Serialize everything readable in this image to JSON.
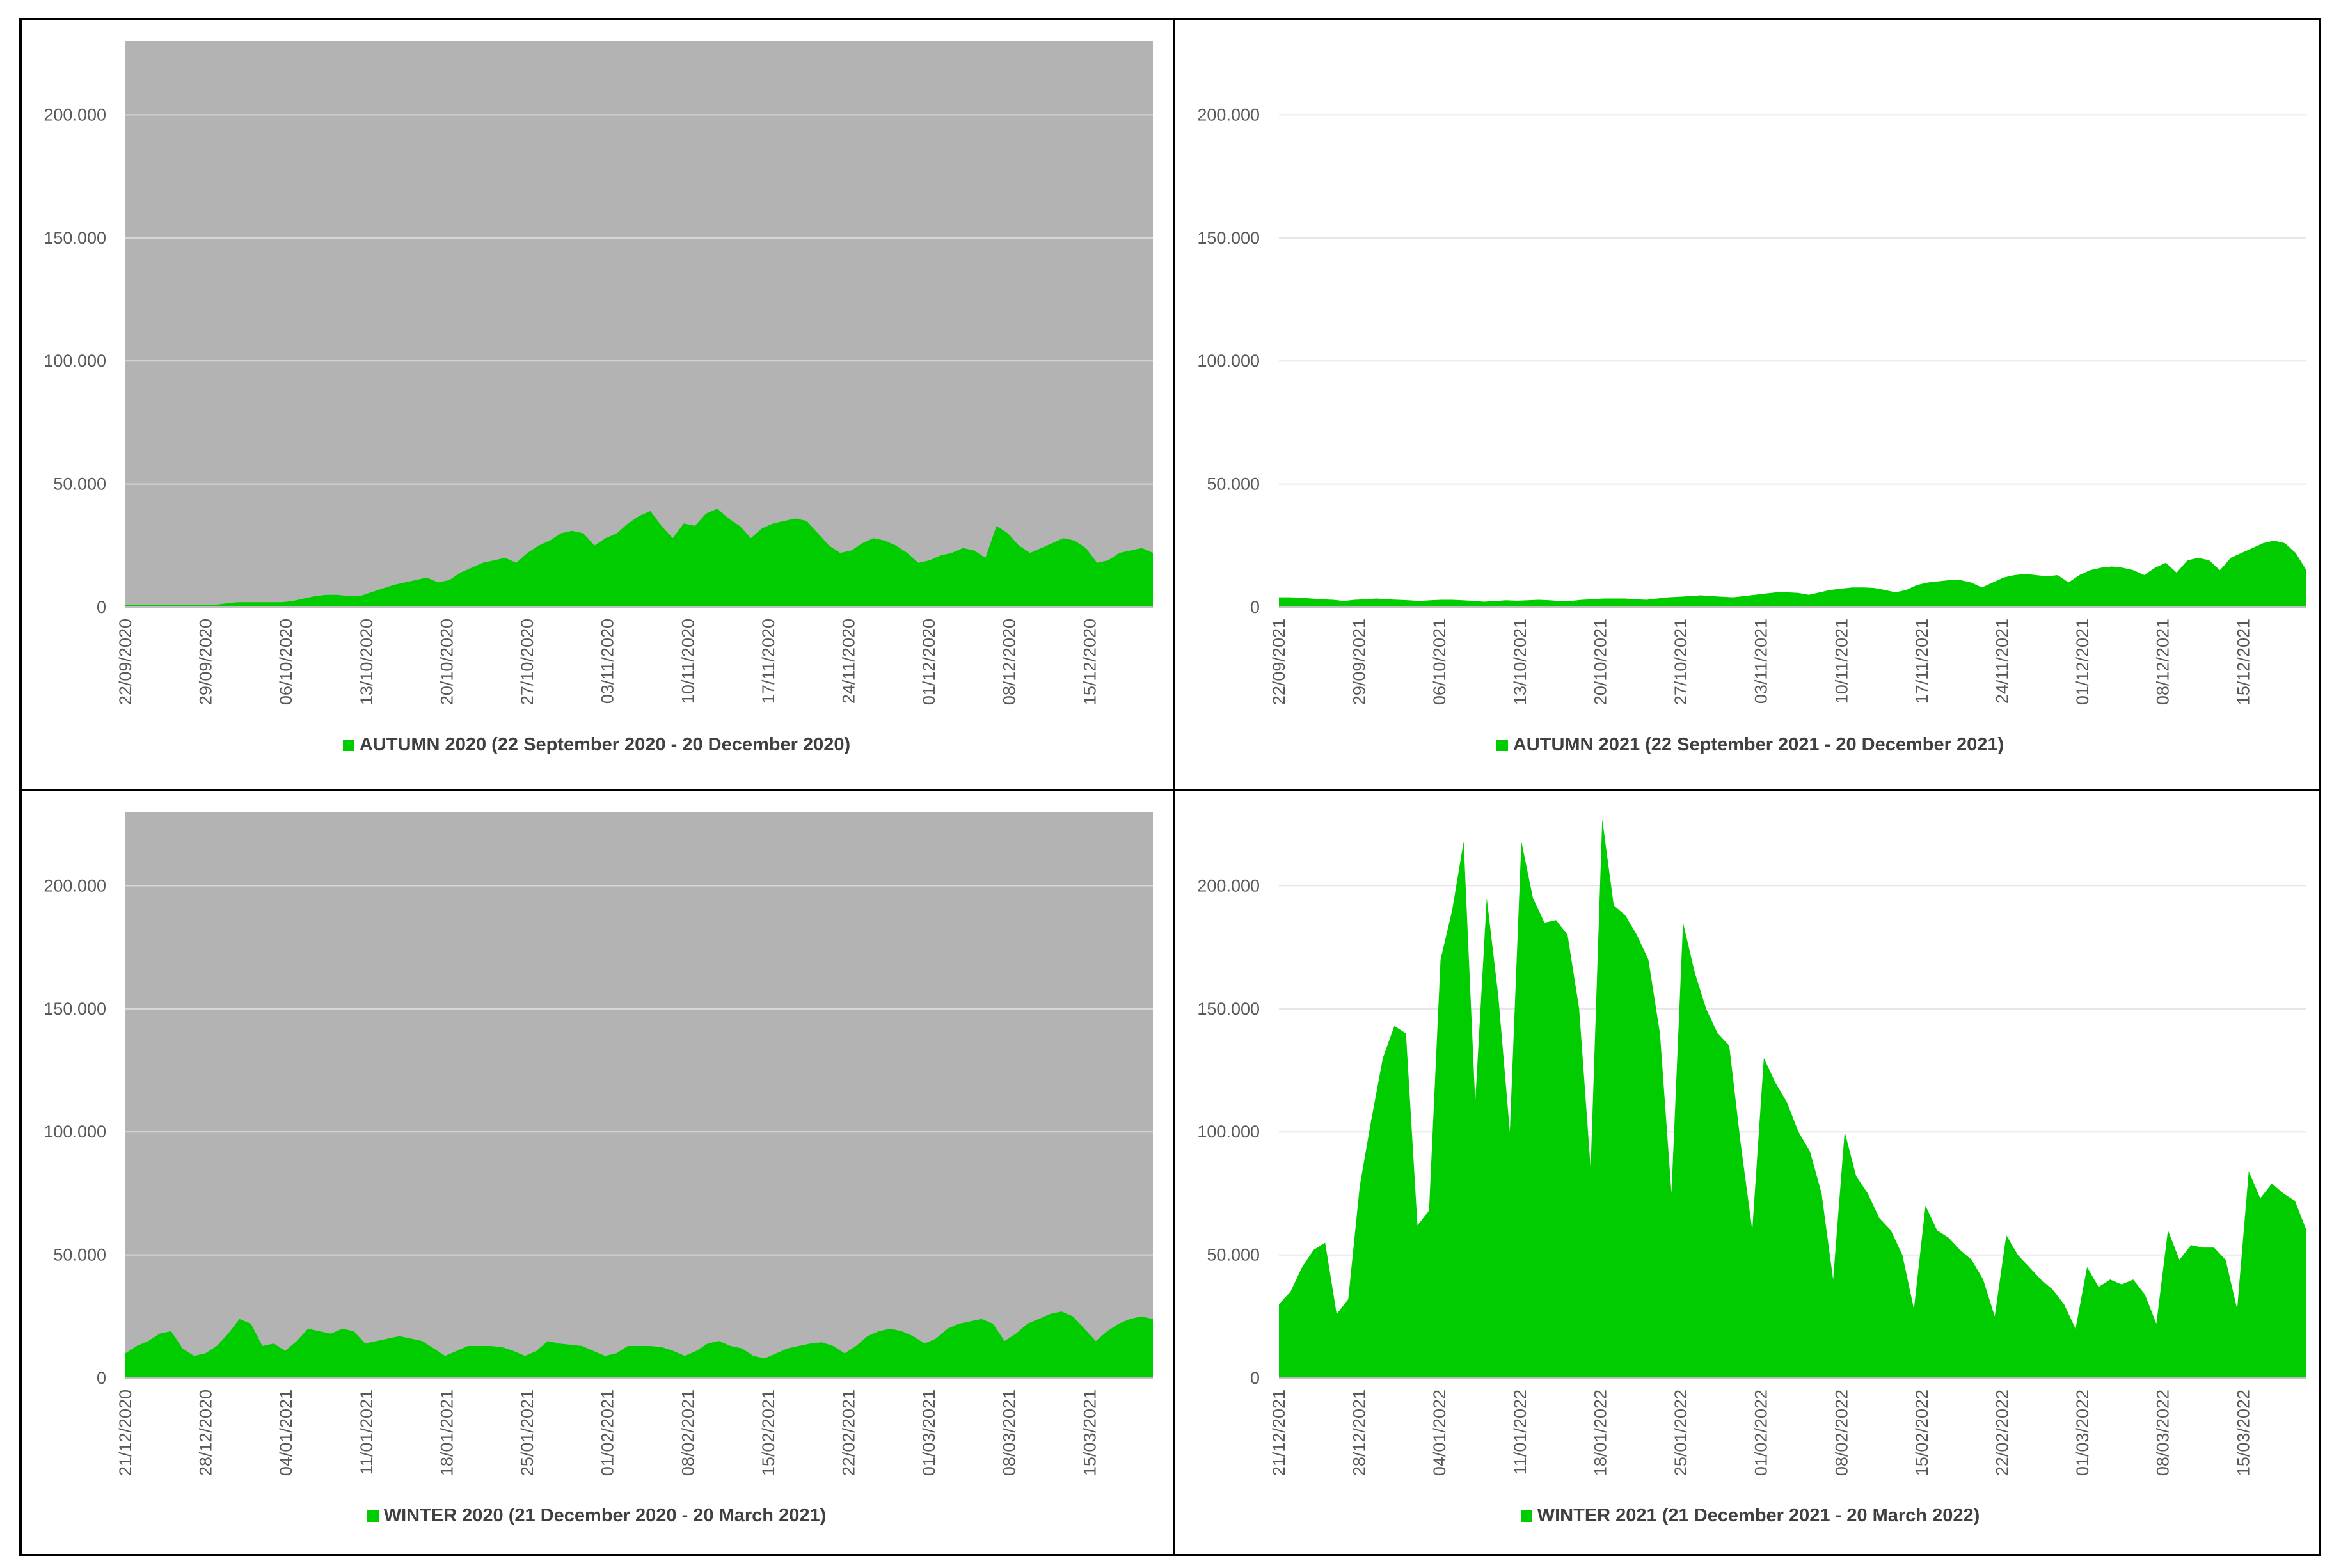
{
  "chart_data": [
    {
      "type": "area",
      "series": [
        {
          "name": "AUTUMN 2020 (22 September 2020 - 20 December 2020)",
          "x_start": "22/09/2020",
          "x_end": "20/12/2020",
          "values": [
            1000,
            1000,
            1000,
            1000,
            1000,
            1000,
            1000,
            1000,
            1000,
            1500,
            2000,
            2000,
            2000,
            2000,
            2000,
            2500,
            3500,
            4500,
            5000,
            5000,
            4500,
            4500,
            6000,
            7500,
            9000,
            10000,
            11000,
            12000,
            10000,
            11000,
            14000,
            16000,
            18000,
            19000,
            20000,
            18000,
            22000,
            25000,
            27000,
            30000,
            31000,
            30000,
            25000,
            28000,
            30000,
            34000,
            37000,
            39000,
            33000,
            28000,
            34000,
            33000,
            38000,
            40000,
            36000,
            33000,
            28000,
            32000,
            34000,
            35000,
            36000,
            35000,
            30000,
            25000,
            22000,
            23000,
            26000,
            28000,
            27000,
            25000,
            22000,
            18000,
            19000,
            21000,
            22000,
            24000,
            23000,
            20000,
            33000,
            30000,
            25000,
            22000,
            24000,
            26000,
            28000,
            27000,
            24000,
            18000,
            19000,
            22000,
            23000,
            24000,
            22000
          ]
        }
      ],
      "x_ticks": [
        "22/09/2020",
        "29/09/2020",
        "06/10/2020",
        "13/10/2020",
        "20/10/2020",
        "27/10/2020",
        "03/11/2020",
        "10/11/2020",
        "17/11/2020",
        "24/11/2020",
        "01/12/2020",
        "08/12/2020",
        "15/12/2020"
      ],
      "y_ticks": [
        "0",
        "50.000",
        "100.000",
        "150.000",
        "200.000"
      ],
      "ylim": [
        0,
        230000
      ],
      "plot_background": "#b3b3b3",
      "area_color": "#00cc00",
      "grid": true,
      "legend": "bottom"
    },
    {
      "type": "area",
      "series": [
        {
          "name": "AUTUMN 2021 (22 September 2021 - 20 December 2021)",
          "x_start": "22/09/2021",
          "x_end": "20/12/2021",
          "values": [
            4000,
            4000,
            3800,
            3500,
            3200,
            3000,
            2500,
            3000,
            3200,
            3500,
            3200,
            3000,
            2800,
            2500,
            2800,
            3000,
            3000,
            2800,
            2500,
            2200,
            2500,
            2800,
            2600,
            2800,
            3000,
            2800,
            2500,
            2500,
            3000,
            3200,
            3500,
            3500,
            3500,
            3200,
            3000,
            3500,
            4000,
            4200,
            4500,
            4800,
            4500,
            4200,
            4000,
            4500,
            5000,
            5500,
            6000,
            6000,
            5800,
            5000,
            6000,
            7000,
            7500,
            8000,
            8000,
            7800,
            7000,
            6000,
            7000,
            9000,
            10000,
            10500,
            11000,
            11000,
            10000,
            8000,
            10000,
            12000,
            13000,
            13500,
            13000,
            12500,
            13000,
            10000,
            13000,
            15000,
            16000,
            16500,
            16000,
            15000,
            13000,
            16000,
            18000,
            14000,
            19000,
            20000,
            19000,
            15000,
            20000,
            22000,
            24000,
            26000,
            27000,
            26000,
            22000,
            15000
          ]
        }
      ],
      "x_ticks": [
        "22/09/2021",
        "29/09/2021",
        "06/10/2021",
        "13/10/2021",
        "20/10/2021",
        "27/10/2021",
        "03/11/2021",
        "10/11/2021",
        "17/11/2021",
        "24/11/2021",
        "01/12/2021",
        "08/12/2021",
        "15/12/2021"
      ],
      "y_ticks": [
        "0",
        "50.000",
        "100.000",
        "150.000",
        "200.000"
      ],
      "ylim": [
        0,
        230000
      ],
      "plot_background": "#ffffff",
      "area_color": "#00cc00",
      "grid": true,
      "legend": "bottom"
    },
    {
      "type": "area",
      "series": [
        {
          "name": "WINTER 2020 (21 December 2020 - 20 March 2021)",
          "x_start": "21/12/2020",
          "x_end": "20/03/2021",
          "values": [
            10000,
            13000,
            15000,
            18000,
            19000,
            12000,
            9000,
            10000,
            13000,
            18000,
            24000,
            22000,
            13000,
            14000,
            11000,
            15000,
            20000,
            19000,
            18000,
            20000,
            19000,
            14000,
            15000,
            16000,
            17000,
            16000,
            15000,
            12000,
            9000,
            11000,
            13000,
            13000,
            13000,
            12500,
            11000,
            9000,
            11000,
            15000,
            14000,
            13500,
            13000,
            11000,
            9000,
            10000,
            13000,
            13000,
            13000,
            12500,
            11000,
            9000,
            11000,
            14000,
            15000,
            13000,
            12000,
            9000,
            8000,
            10000,
            12000,
            13000,
            14000,
            14500,
            13000,
            10000,
            13000,
            17000,
            19000,
            20000,
            19000,
            17000,
            14000,
            16000,
            20000,
            22000,
            23000,
            24000,
            22000,
            15000,
            18000,
            22000,
            24000,
            26000,
            27000,
            25000,
            20000,
            15000,
            19000,
            22000,
            24000,
            25000,
            24000
          ]
        }
      ],
      "x_ticks": [
        "21/12/2020",
        "28/12/2020",
        "04/01/2021",
        "11/01/2021",
        "18/01/2021",
        "25/01/2021",
        "01/02/2021",
        "08/02/2021",
        "15/02/2021",
        "22/02/2021",
        "01/03/2021",
        "08/03/2021",
        "15/03/2021"
      ],
      "y_ticks": [
        "0",
        "50.000",
        "100.000",
        "150.000",
        "200.000"
      ],
      "ylim": [
        0,
        230000
      ],
      "plot_background": "#b3b3b3",
      "area_color": "#00cc00",
      "grid": true,
      "legend": "bottom"
    },
    {
      "type": "area",
      "series": [
        {
          "name": "WINTER 2021 (21 December 2021 - 20 March 2022)",
          "x_start": "21/12/2021",
          "x_end": "20/03/2022",
          "values": [
            30000,
            35000,
            45000,
            52000,
            55000,
            26000,
            32000,
            78000,
            105000,
            130000,
            143000,
            140000,
            62000,
            68000,
            170000,
            190000,
            218000,
            112000,
            195000,
            155000,
            100000,
            218000,
            195000,
            185000,
            186000,
            180000,
            150000,
            85000,
            227000,
            192000,
            188000,
            180000,
            170000,
            140000,
            75000,
            185000,
            165000,
            150000,
            140000,
            135000,
            95000,
            60000,
            130000,
            120000,
            112000,
            100000,
            92000,
            75000,
            40000,
            100000,
            82000,
            75000,
            65000,
            60000,
            50000,
            28000,
            70000,
            60000,
            57000,
            52000,
            48000,
            40000,
            25000,
            58000,
            50000,
            45000,
            40000,
            36000,
            30000,
            20000,
            45000,
            37000,
            40000,
            38000,
            40000,
            34000,
            22000,
            60000,
            48000,
            54000,
            53000,
            53000,
            48000,
            28000,
            84000,
            73000,
            79000,
            75000,
            72000,
            60000
          ]
        }
      ],
      "x_ticks": [
        "21/12/2021",
        "28/12/2021",
        "04/01/2022",
        "11/01/2022",
        "18/01/2022",
        "25/01/2022",
        "01/02/2022",
        "08/02/2022",
        "15/02/2022",
        "22/02/2022",
        "01/03/2022",
        "08/03/2022",
        "15/03/2022"
      ],
      "y_ticks": [
        "0",
        "50.000",
        "100.000",
        "150.000",
        "200.000"
      ],
      "ylim": [
        0,
        230000
      ],
      "plot_background": "#ffffff",
      "area_color": "#00cc00",
      "grid": true,
      "legend": "bottom"
    }
  ]
}
